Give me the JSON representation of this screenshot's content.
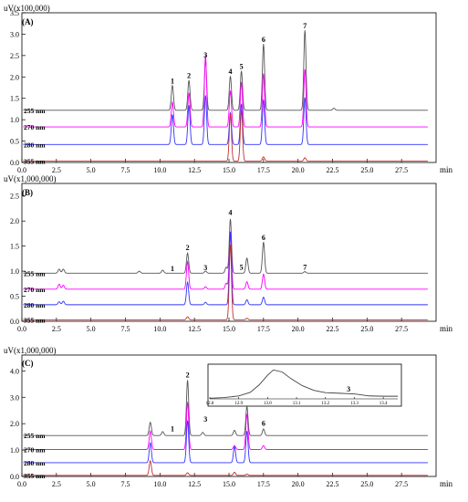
{
  "chart_data": [
    {
      "type": "line",
      "panel_label": "(A)",
      "y_unit": "uV(x100,000)",
      "x_unit": "min",
      "xlim": [
        0,
        30
      ],
      "ylim": [
        0,
        3.5
      ],
      "x_ticks": [
        "0.0",
        "2.5",
        "5.0",
        "7.5",
        "10.0",
        "12.5",
        "15.0",
        "17.5",
        "20.0",
        "22.5",
        "25.0",
        "27.5"
      ],
      "y_ticks": [
        "0.0",
        "0.5",
        "1.0",
        "1.5",
        "2.0",
        "2.5",
        "3.0",
        "3.5"
      ],
      "series": [
        {
          "name": "255 nm",
          "color": "#555555",
          "baseline": 1.22,
          "peaks": [
            {
              "x": 10.9,
              "h": 0.58
            },
            {
              "x": 12.1,
              "h": 0.7
            },
            {
              "x": 13.3,
              "h": 1.18
            },
            {
              "x": 15.1,
              "h": 0.8
            },
            {
              "x": 15.9,
              "h": 0.92
            },
            {
              "x": 17.5,
              "h": 1.55
            },
            {
              "x": 20.5,
              "h": 1.87
            },
            {
              "x": 22.6,
              "h": 0.05
            }
          ]
        },
        {
          "name": "270 nm",
          "color": "#ff00ff",
          "baseline": 0.83,
          "peaks": [
            {
              "x": 10.9,
              "h": 0.58
            },
            {
              "x": 12.1,
              "h": 0.8
            },
            {
              "x": 13.3,
              "h": 1.68
            },
            {
              "x": 15.1,
              "h": 0.85
            },
            {
              "x": 15.9,
              "h": 1.05
            },
            {
              "x": 17.5,
              "h": 1.25
            },
            {
              "x": 20.5,
              "h": 1.35
            }
          ]
        },
        {
          "name": "280 nm",
          "color": "#3333ff",
          "baseline": 0.42,
          "peaks": [
            {
              "x": 10.9,
              "h": 0.7
            },
            {
              "x": 12.1,
              "h": 0.92
            },
            {
              "x": 13.3,
              "h": 1.15
            },
            {
              "x": 15.1,
              "h": 0.75
            },
            {
              "x": 15.9,
              "h": 0.95
            },
            {
              "x": 17.5,
              "h": 1.05
            },
            {
              "x": 20.5,
              "h": 1.1
            }
          ]
        },
        {
          "name": "355 nm",
          "color": "#c03030",
          "baseline": 0.03,
          "peaks": [
            {
              "x": 15.1,
              "h": 1.1
            },
            {
              "x": 15.9,
              "h": 1.2
            },
            {
              "x": 17.5,
              "h": 0.1
            },
            {
              "x": 20.5,
              "h": 0.08
            }
          ]
        }
      ],
      "annotations": [
        {
          "text": "1",
          "x": 10.9,
          "y": 1.85
        },
        {
          "text": "2",
          "x": 12.1,
          "y": 1.97
        },
        {
          "text": "3",
          "x": 13.3,
          "y": 2.45
        },
        {
          "text": "4",
          "x": 15.1,
          "y": 2.07
        },
        {
          "text": "5",
          "x": 15.9,
          "y": 2.19
        },
        {
          "text": "6",
          "x": 17.5,
          "y": 2.82
        },
        {
          "text": "7",
          "x": 20.5,
          "y": 3.14
        }
      ]
    },
    {
      "type": "line",
      "panel_label": "(B)",
      "y_unit": "uV(x1,000,000)",
      "x_unit": "min",
      "xlim": [
        0,
        30
      ],
      "ylim": [
        0,
        2.75
      ],
      "x_ticks": [
        "0.0",
        "2.5",
        "5.0",
        "7.5",
        "10.0",
        "12.5",
        "15.0",
        "17.5",
        "20.0",
        "22.5",
        "25.0",
        "27.5"
      ],
      "y_ticks": [
        "0.0",
        "0.5",
        "1.0",
        "1.5",
        "2.0",
        "2.5"
      ],
      "series": [
        {
          "name": "255 nm",
          "color": "#555555",
          "baseline": 0.96,
          "peaks": [
            {
              "x": 2.7,
              "h": 0.08
            },
            {
              "x": 3.0,
              "h": 0.08
            },
            {
              "x": 8.5,
              "h": 0.04
            },
            {
              "x": 10.2,
              "h": 0.06
            },
            {
              "x": 12.0,
              "h": 0.4
            },
            {
              "x": 13.3,
              "h": 0.04
            },
            {
              "x": 14.8,
              "h": 0.12
            },
            {
              "x": 15.1,
              "h": 1.08
            },
            {
              "x": 16.3,
              "h": 0.3
            },
            {
              "x": 17.5,
              "h": 0.62
            },
            {
              "x": 20.5,
              "h": 0.03
            }
          ]
        },
        {
          "name": "270 nm",
          "color": "#ff00ff",
          "baseline": 0.64,
          "peaks": [
            {
              "x": 2.7,
              "h": 0.1
            },
            {
              "x": 3.0,
              "h": 0.08
            },
            {
              "x": 12.0,
              "h": 0.55
            },
            {
              "x": 13.3,
              "h": 0.05
            },
            {
              "x": 14.8,
              "h": 0.12
            },
            {
              "x": 15.1,
              "h": 1.15
            },
            {
              "x": 16.3,
              "h": 0.15
            },
            {
              "x": 17.5,
              "h": 0.3
            }
          ]
        },
        {
          "name": "280 nm",
          "color": "#3333ff",
          "baseline": 0.33,
          "peaks": [
            {
              "x": 2.7,
              "h": 0.06
            },
            {
              "x": 3.0,
              "h": 0.07
            },
            {
              "x": 12.0,
              "h": 0.45
            },
            {
              "x": 13.3,
              "h": 0.05
            },
            {
              "x": 15.1,
              "h": 1.45
            },
            {
              "x": 16.3,
              "h": 0.1
            },
            {
              "x": 17.5,
              "h": 0.15
            }
          ]
        },
        {
          "name": "355 nm",
          "color": "#c03030",
          "baseline": 0.03,
          "peaks": [
            {
              "x": 12.0,
              "h": 0.06
            },
            {
              "x": 15.1,
              "h": 1.5
            },
            {
              "x": 16.3,
              "h": 0.03
            }
          ]
        }
      ],
      "annotations": [
        {
          "text": "1",
          "x": 10.9,
          "y": 1.0
        },
        {
          "text": "2",
          "x": 12.0,
          "y": 1.42
        },
        {
          "text": "3",
          "x": 13.3,
          "y": 1.02
        },
        {
          "text": "4",
          "x": 15.1,
          "y": 2.12
        },
        {
          "text": "5",
          "x": 15.9,
          "y": 1.03
        },
        {
          "text": "6",
          "x": 17.5,
          "y": 1.62
        },
        {
          "text": "7",
          "x": 20.5,
          "y": 1.03
        }
      ]
    },
    {
      "type": "line",
      "panel_label": "(C)",
      "y_unit": "uV(x1,000,000)",
      "x_unit": "min",
      "xlim": [
        0,
        30
      ],
      "ylim": [
        0,
        4.6
      ],
      "x_ticks": [
        "0.0",
        "2.5",
        "5.0",
        "7.5",
        "10.0",
        "12.5",
        "15.0",
        "17.5",
        "20.0",
        "22.5",
        "25.0",
        "27.5"
      ],
      "y_ticks": [
        "0.0",
        "1.0",
        "2.0",
        "3.0",
        "4.0"
      ],
      "series": [
        {
          "name": "255 nm",
          "color": "#555555",
          "baseline": 1.55,
          "peaks": [
            {
              "x": 9.3,
              "h": 0.5
            },
            {
              "x": 10.2,
              "h": 0.15
            },
            {
              "x": 12.0,
              "h": 2.1
            },
            {
              "x": 13.1,
              "h": 0.12
            },
            {
              "x": 15.4,
              "h": 0.2
            },
            {
              "x": 16.3,
              "h": 1.1
            },
            {
              "x": 17.5,
              "h": 0.25
            }
          ]
        },
        {
          "name": "270 nm",
          "color": "#ff00ff",
          "baseline": 1.02,
          "peaks": [
            {
              "x": 9.3,
              "h": 0.7
            },
            {
              "x": 12.0,
              "h": 1.8
            },
            {
              "x": 15.4,
              "h": 0.15
            },
            {
              "x": 16.3,
              "h": 1.35
            },
            {
              "x": 17.5,
              "h": 0.15
            }
          ]
        },
        {
          "name": "280 nm",
          "color": "#3333ff",
          "baseline": 0.52,
          "peaks": [
            {
              "x": 9.3,
              "h": 0.75
            },
            {
              "x": 12.0,
              "h": 1.6
            },
            {
              "x": 15.4,
              "h": 0.6
            },
            {
              "x": 16.3,
              "h": 1.2
            }
          ]
        },
        {
          "name": "355 nm",
          "color": "#c03030",
          "baseline": 0.04,
          "peaks": [
            {
              "x": 9.3,
              "h": 0.55
            },
            {
              "x": 12.0,
              "h": 0.1
            },
            {
              "x": 15.4,
              "h": 0.12
            },
            {
              "x": 16.3,
              "h": 0.05
            }
          ]
        }
      ],
      "annotations": [
        {
          "text": "1",
          "x": 10.9,
          "y": 1.72
        },
        {
          "text": "2",
          "x": 12.0,
          "y": 3.75
        },
        {
          "text": "3",
          "x": 13.3,
          "y": 2.07
        },
        {
          "text": "6",
          "x": 17.5,
          "y": 1.92
        }
      ],
      "inset": {
        "xlim": [
          12.8,
          13.45
        ],
        "x_ticks": [
          "12.8",
          "12.9",
          "13.0",
          "13.1",
          "13.2",
          "13.3",
          "13.4"
        ],
        "peak_label": "3",
        "peak_label_x": 13.28,
        "curve_x": [
          12.8,
          12.85,
          12.9,
          12.94,
          12.97,
          13.0,
          13.02,
          13.05,
          13.08,
          13.12,
          13.16,
          13.2,
          13.25,
          13.3,
          13.35,
          13.4,
          13.45
        ],
        "curve_y": [
          0.02,
          0.04,
          0.09,
          0.2,
          0.42,
          0.72,
          0.88,
          0.82,
          0.62,
          0.4,
          0.26,
          0.19,
          0.17,
          0.15,
          0.09,
          0.08,
          0.08
        ]
      }
    }
  ]
}
